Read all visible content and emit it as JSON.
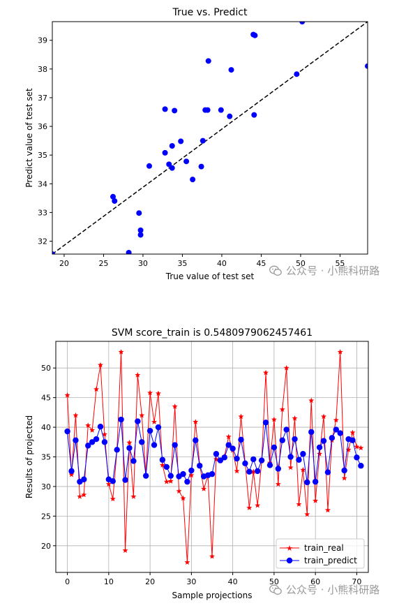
{
  "colors": {
    "scatter_points": "#0000ff",
    "diagonal_line": "#000000",
    "train_real": "#ff0000",
    "train_predict": "#0000ff",
    "grid": "#b0b0b0",
    "watermark": "#9a9a9a"
  },
  "watermark": {
    "text": "公众号 · 小熊科研路",
    "icon": "wechat-bubble-icon"
  },
  "chart_data": [
    {
      "type": "scatter",
      "title": "True vs. Predict",
      "xlabel": "True value of test set",
      "ylabel": "Predict value of test set",
      "xlim": [
        18.5,
        58.5
      ],
      "ylim": [
        31.55,
        39.65
      ],
      "xticks": [
        20,
        25,
        30,
        35,
        40,
        45,
        50,
        55
      ],
      "yticks": [
        32,
        33,
        34,
        35,
        36,
        37,
        38,
        39
      ],
      "grid": false,
      "reference_line": {
        "style": "dashed",
        "from": [
          18.5,
          31.55
        ],
        "to": [
          58.5,
          39.65
        ]
      },
      "points": [
        [
          18.5,
          31.55
        ],
        [
          26.2,
          33.55
        ],
        [
          26.4,
          33.4
        ],
        [
          28.2,
          31.6
        ],
        [
          29.5,
          32.98
        ],
        [
          29.7,
          32.38
        ],
        [
          29.7,
          32.22
        ],
        [
          30.8,
          34.62
        ],
        [
          32.8,
          36.6
        ],
        [
          32.8,
          35.08
        ],
        [
          33.3,
          34.68
        ],
        [
          33.7,
          34.55
        ],
        [
          33.7,
          35.32
        ],
        [
          34.0,
          36.55
        ],
        [
          34.8,
          35.48
        ],
        [
          35.5,
          34.78
        ],
        [
          36.3,
          34.15
        ],
        [
          37.4,
          34.6
        ],
        [
          37.6,
          35.5
        ],
        [
          37.9,
          36.57
        ],
        [
          38.2,
          36.57
        ],
        [
          38.3,
          38.28
        ],
        [
          39.9,
          36.57
        ],
        [
          41.0,
          36.35
        ],
        [
          41.2,
          37.97
        ],
        [
          44.0,
          39.2
        ],
        [
          44.2,
          39.17
        ],
        [
          44.1,
          36.4
        ],
        [
          49.5,
          37.82
        ],
        [
          50.2,
          39.65
        ],
        [
          58.5,
          38.1
        ]
      ]
    },
    {
      "type": "line",
      "title": "SVM score_train is 0.5480979062457461",
      "xlabel": "Sample projections",
      "ylabel": "Results of projected",
      "xlim": [
        -2.8,
        72.8
      ],
      "ylim": [
        15.5,
        54.5
      ],
      "xticks": [
        0,
        10,
        20,
        30,
        40,
        50,
        60,
        70
      ],
      "yticks": [
        20,
        25,
        30,
        35,
        40,
        45,
        50
      ],
      "grid": true,
      "legend": "bottom-right",
      "x": [
        0,
        1,
        2,
        3,
        4,
        5,
        6,
        7,
        8,
        9,
        10,
        11,
        12,
        13,
        14,
        15,
        16,
        17,
        18,
        19,
        20,
        21,
        22,
        23,
        24,
        25,
        26,
        27,
        28,
        29,
        30,
        31,
        32,
        33,
        34,
        35,
        36,
        37,
        38,
        39,
        40,
        41,
        42,
        43,
        44,
        45,
        46,
        47,
        48,
        49,
        50,
        51,
        52,
        53,
        54,
        55,
        56,
        57,
        58,
        59,
        60,
        61,
        62,
        63,
        64,
        65,
        66,
        67,
        68,
        69,
        70,
        71
      ],
      "series": [
        {
          "name": "train_real",
          "marker": "star",
          "values": [
            45.4,
            32.0,
            42.0,
            28.3,
            28.6,
            40.3,
            39.5,
            46.4,
            50.5,
            38.8,
            30.4,
            27.9,
            36.2,
            52.7,
            19.2,
            37.4,
            28.3,
            48.8,
            42.0,
            32.0,
            45.8,
            40.9,
            45.7,
            33.6,
            30.8,
            30.9,
            43.5,
            29.2,
            28.0,
            17.2,
            31.9,
            40.9,
            33.7,
            29.6,
            31.8,
            18.2,
            34.6,
            34.3,
            35.1,
            38.4,
            36.1,
            32.6,
            41.8,
            34.0,
            26.4,
            32.5,
            26.8,
            34.3,
            49.2,
            34.0,
            41.3,
            30.4,
            43.0,
            50.0,
            33.2,
            41.5,
            27.0,
            32.8,
            25.3,
            44.5,
            27.6,
            35.5,
            41.8,
            26.0,
            37.8,
            41.2,
            52.7,
            31.4,
            36.2,
            39.1,
            36.7,
            36.5
          ]
        },
        {
          "name": "train_predict",
          "marker": "circle",
          "values": [
            39.3,
            32.6,
            37.8,
            30.8,
            31.2,
            36.9,
            37.5,
            38.0,
            40.1,
            37.5,
            31.2,
            30.9,
            36.2,
            41.3,
            31.1,
            36.5,
            34.3,
            41.0,
            37.5,
            31.8,
            39.4,
            37.0,
            40.0,
            34.5,
            33.3,
            31.8,
            37.0,
            31.7,
            32.1,
            30.8,
            32.7,
            37.8,
            33.5,
            31.7,
            31.9,
            32.1,
            35.5,
            34.4,
            34.9,
            37.0,
            36.4,
            34.7,
            37.9,
            33.9,
            32.5,
            34.6,
            32.6,
            34.4,
            40.8,
            33.6,
            36.6,
            33.0,
            37.8,
            39.6,
            35.0,
            38.0,
            34.5,
            35.5,
            30.7,
            39.2,
            30.8,
            36.6,
            37.7,
            32.4,
            38.2,
            39.6,
            39.0,
            32.7,
            38.0,
            37.8,
            34.9,
            33.5
          ]
        }
      ]
    }
  ]
}
